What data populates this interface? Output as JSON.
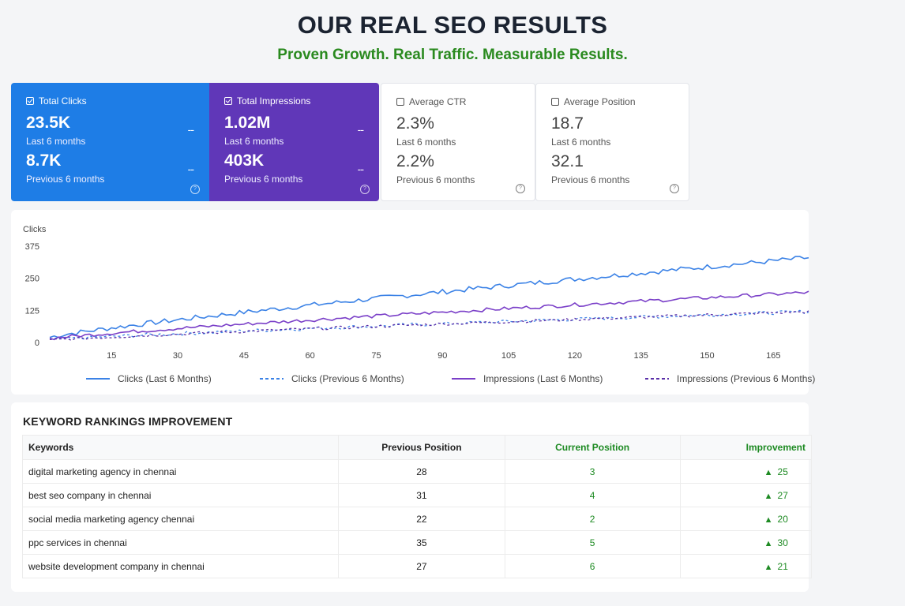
{
  "header": {
    "title": "OUR REAL SEO RESULTS",
    "subtitle": "Proven Growth. Real Traffic. Measurable Results."
  },
  "metrics": [
    {
      "label": "Total Clicks",
      "checked": true,
      "current": "23.5K",
      "current_label": "Last 6 months",
      "previous": "8.7K",
      "previous_label": "Previous 6 months",
      "change": "--",
      "color": "#1e7de6"
    },
    {
      "label": "Total Impressions",
      "checked": true,
      "current": "1.02M",
      "current_label": "Last 6 months",
      "previous": "403K",
      "previous_label": "Previous 6 months",
      "change": "--",
      "color": "#6037b8"
    },
    {
      "label": "Average CTR",
      "checked": false,
      "current": "2.3%",
      "current_label": "Last 6 months",
      "previous": "2.2%",
      "previous_label": "Previous 6 months",
      "change": "",
      "color": "#ffffff"
    },
    {
      "label": "Average Position",
      "checked": false,
      "current": "18.7",
      "current_label": "Last 6 months",
      "previous": "32.1",
      "previous_label": "Previous 6 months",
      "change": "",
      "color": "#ffffff"
    }
  ],
  "help_glyph": "?",
  "chart_data": {
    "type": "line",
    "ylabel": "Clicks",
    "yticks": [
      0,
      125,
      250,
      375
    ],
    "ylim": [
      0,
      375
    ],
    "xticks": [
      15,
      30,
      45,
      60,
      75,
      90,
      105,
      120,
      135,
      150,
      165
    ],
    "xlim": [
      1,
      173
    ],
    "grid": false,
    "legend_position": "bottom",
    "series": [
      {
        "name": "Clicks (Last 6 Months)",
        "style": "solid",
        "color": "#3b82e6",
        "start": 20,
        "end": 330,
        "noise": 10
      },
      {
        "name": "Clicks (Previous 6 Months)",
        "style": "dashed",
        "color": "#3b82e6",
        "start": 10,
        "end": 120,
        "noise": 7
      },
      {
        "name": "Impressions (Last 6 Months)",
        "style": "solid",
        "color": "#7a3fc8",
        "start": 15,
        "end": 195,
        "noise": 7
      },
      {
        "name": "Impressions (Previous 6 Months)",
        "style": "dashed",
        "color": "#5a2fa8",
        "start": 8,
        "end": 120,
        "noise": 6
      }
    ]
  },
  "rankings": {
    "title": "KEYWORD RANKINGS IMPROVEMENT",
    "columns": [
      "Keywords",
      "Previous Position",
      "Current Position",
      "Improvement"
    ],
    "rows": [
      {
        "keyword": "digital marketing agency in chennai",
        "previous": "28",
        "current": "3",
        "improvement": "25"
      },
      {
        "keyword": "best seo company in chennai",
        "previous": "31",
        "current": "4",
        "improvement": "27"
      },
      {
        "keyword": "social media marketing agency chennai",
        "previous": "22",
        "current": "2",
        "improvement": "20"
      },
      {
        "keyword": "ppc services in chennai",
        "previous": "35",
        "current": "5",
        "improvement": "30"
      },
      {
        "keyword": "website development company in chennai",
        "previous": "27",
        "current": "6",
        "improvement": "21"
      }
    ],
    "arrow": "▲"
  }
}
